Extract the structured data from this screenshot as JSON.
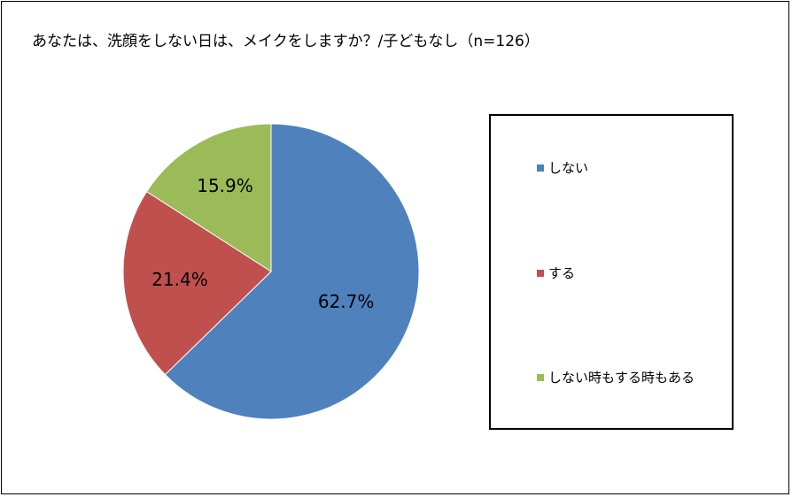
{
  "chart_data": {
    "type": "pie",
    "title": "あなたは、洗顔をしない日は、メイクをしますか？/子どもなし（n=126）",
    "slices": [
      {
        "label": "しない",
        "value": 62.7,
        "display": "62.7%",
        "color": "#4F81BD"
      },
      {
        "label": "する",
        "value": 21.4,
        "display": "21.4%",
        "color": "#C0504D"
      },
      {
        "label": "しない時もする時もある",
        "value": 15.9,
        "display": "15.9%",
        "color": "#9BBB59"
      }
    ],
    "legend_position": "right"
  }
}
